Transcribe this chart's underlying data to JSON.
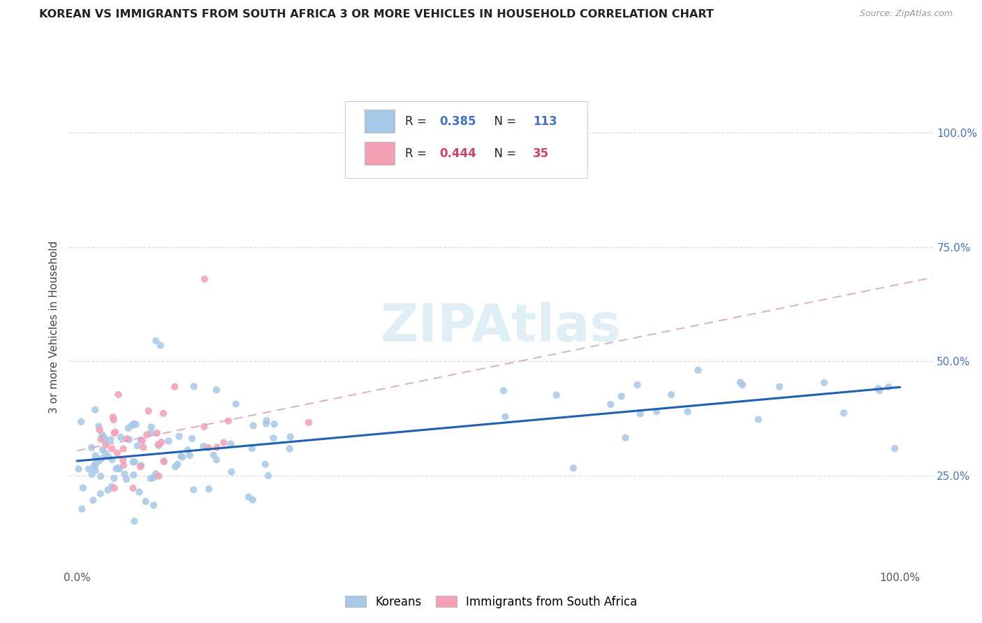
{
  "title": "KOREAN VS IMMIGRANTS FROM SOUTH AFRICA 3 OR MORE VEHICLES IN HOUSEHOLD CORRELATION CHART",
  "source": "Source: ZipAtlas.com",
  "ylabel": "3 or more Vehicles in Household",
  "watermark": "ZIPAtlas",
  "ytick_values": [
    0.25,
    0.5,
    0.75,
    1.0
  ],
  "ytick_labels": [
    "25.0%",
    "50.0%",
    "75.0%",
    "100.0%"
  ],
  "xlim": [
    0.0,
    1.0
  ],
  "ylim": [
    0.05,
    1.1
  ],
  "blue_color": "#a8c8e8",
  "pink_color": "#f4a0b5",
  "blue_line_color": "#2060b0",
  "pink_line_color": "#d04070",
  "grid_color": "#dddddd",
  "legend_text_color": "#333333",
  "legend_value_color": "#4472c4",
  "right_tick_color": "#4472c4",
  "title_color": "#222222",
  "source_color": "#999999"
}
